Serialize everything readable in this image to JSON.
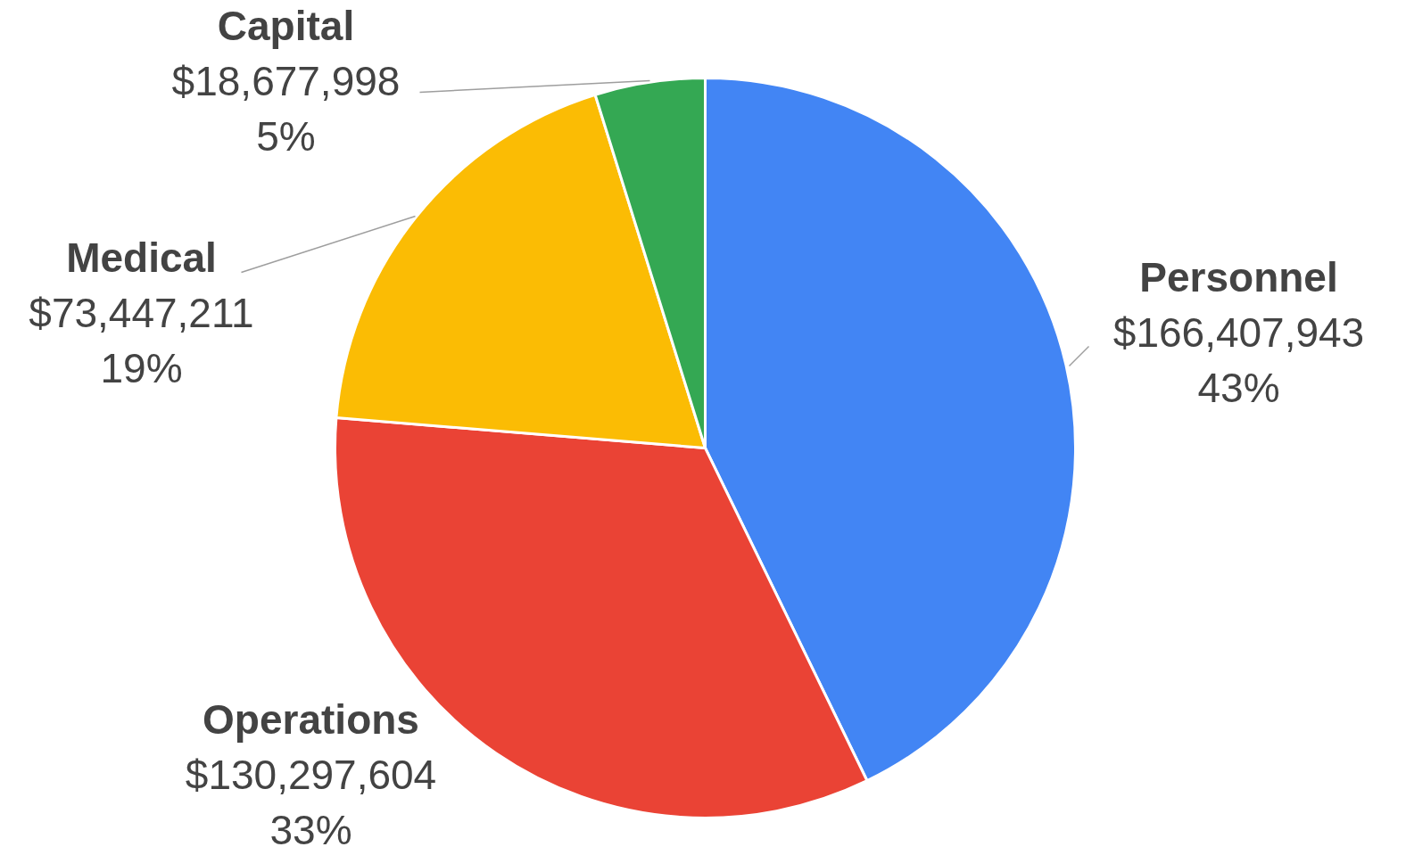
{
  "chart_data": {
    "type": "pie",
    "categories": [
      "Personnel",
      "Operations",
      "Medical",
      "Capital"
    ],
    "values": [
      166407943,
      130297604,
      73447211,
      18677998
    ],
    "colors": [
      "#4285f4",
      "#ea4335",
      "#fbbc04",
      "#34a853"
    ],
    "value_labels": [
      "$166,407,943\n43%",
      "$130,297,604\n33%",
      "$73,447,211\n19%",
      "$18,677,998\n5%"
    ]
  }
}
